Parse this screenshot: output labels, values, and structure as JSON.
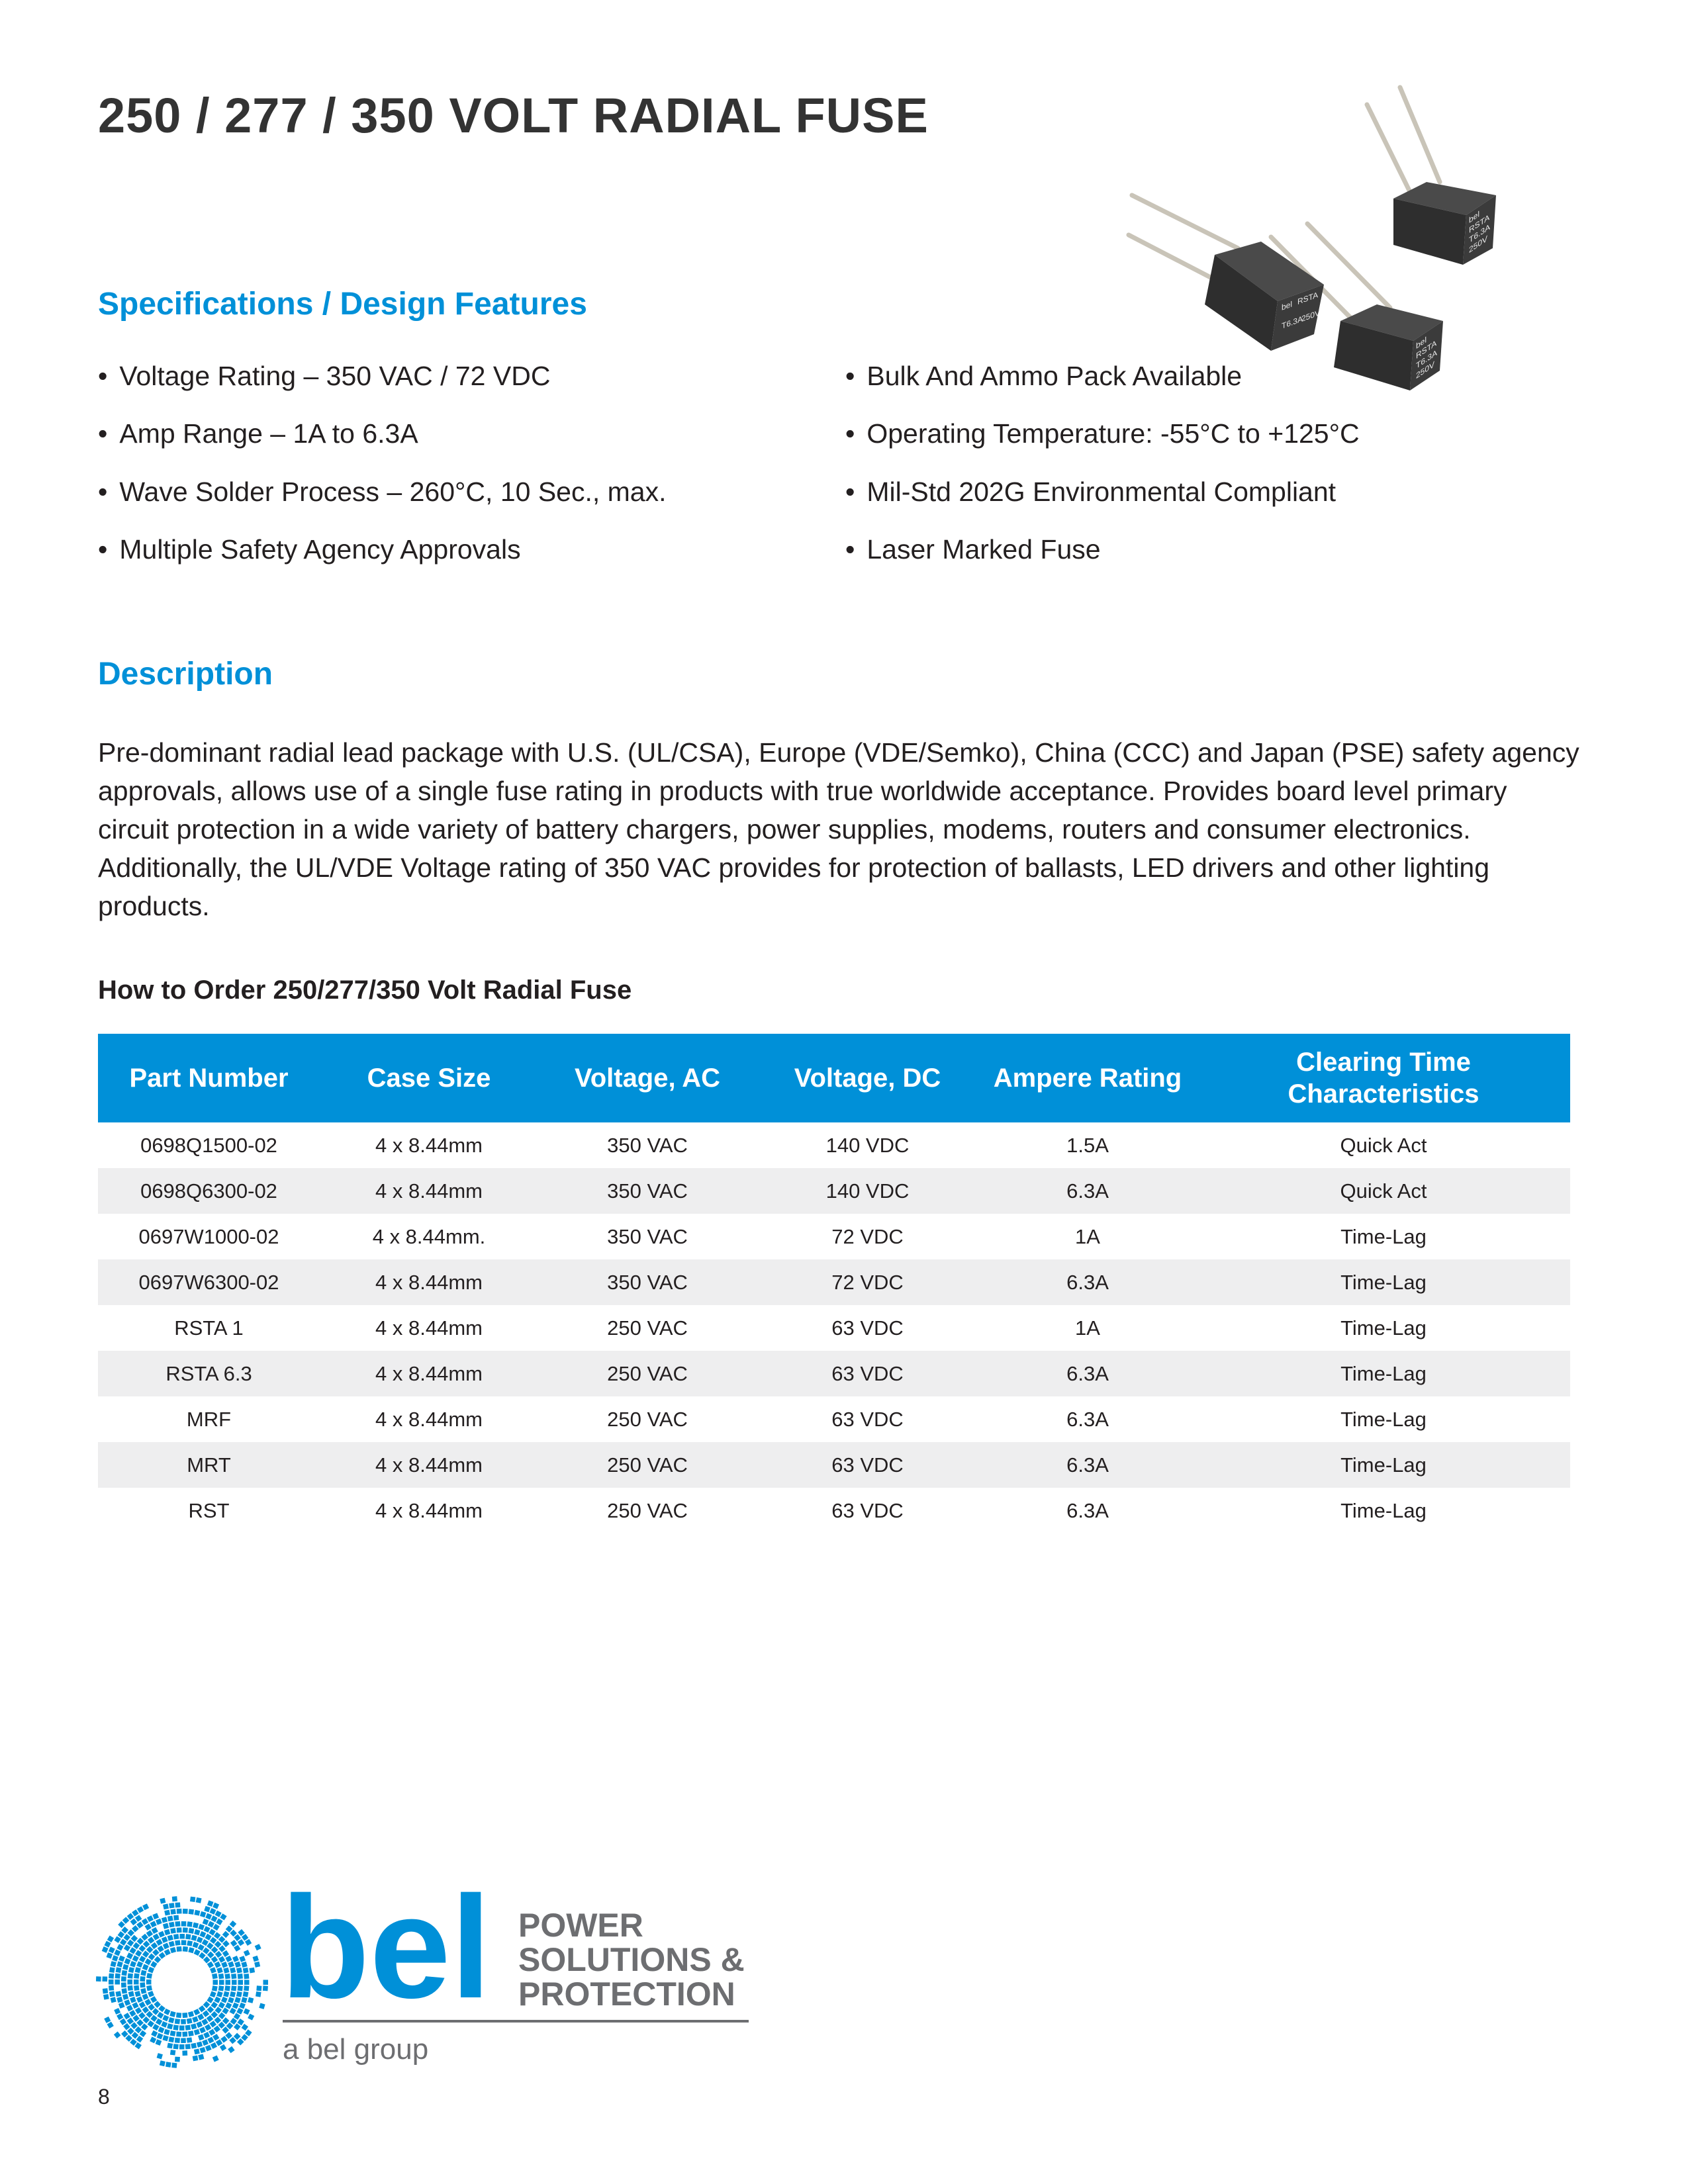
{
  "title": "250 / 277 / 350 VOLT RADIAL FUSE",
  "specs": {
    "heading": "Specifications / Design Features",
    "left": [
      "Voltage Rating – 350 VAC / 72 VDC",
      "Amp Range – 1A to 6.3A",
      "Wave Solder Process – 260°C, 10 Sec., max.",
      "Multiple Safety Agency Approvals"
    ],
    "right": [
      "Bulk And Ammo Pack Available",
      "Operating Temperature: -55°C to +125°C",
      "Mil-Std 202G Environmental Compliant",
      "Laser Marked Fuse"
    ]
  },
  "description": {
    "heading": "Description",
    "text": "Pre-dominant radial lead package with U.S. (UL/CSA), Europe (VDE/Semko), China (CCC) and Japan (PSE) safety agency approvals, allows use of a single fuse rating in products with true worldwide acceptance. Provides board level primary circuit protection in a wide variety of battery chargers, power supplies, modems, routers and consumer electronics. Additionally, the UL/VDE Voltage rating of 350 VAC provides for protection of ballasts, LED drivers and other lighting products."
  },
  "order": {
    "title": "How to Order 250/277/350 Volt Radial Fuse",
    "headers": [
      "Part Number",
      "Case Size",
      "Voltage, AC",
      "Voltage, DC",
      "Ampere Rating",
      "Clearing Time Characteristics"
    ],
    "rows": [
      [
        "0698Q1500-02",
        "4 x 8.44mm",
        "350 VAC",
        "140 VDC",
        "1.5A",
        "Quick Act"
      ],
      [
        "0698Q6300-02",
        "4 x 8.44mm",
        "350 VAC",
        "140 VDC",
        "6.3A",
        "Quick Act"
      ],
      [
        "0697W1000-02",
        "4 x 8.44mm.",
        "350 VAC",
        "72 VDC",
        "1A",
        "Time-Lag"
      ],
      [
        "0697W6300-02",
        "4 x 8.44mm",
        "350 VAC",
        "72 VDC",
        "6.3A",
        "Time-Lag"
      ],
      [
        "RSTA 1",
        "4 x 8.44mm",
        "250 VAC",
        "63 VDC",
        "1A",
        "Time-Lag"
      ],
      [
        "RSTA 6.3",
        "4 x 8.44mm",
        "250 VAC",
        "63 VDC",
        "6.3A",
        "Time-Lag"
      ],
      [
        "MRF",
        "4 x 8.44mm",
        "250 VAC",
        "63 VDC",
        "6.3A",
        "Time-Lag"
      ],
      [
        "MRT",
        "4 x 8.44mm",
        "250 VAC",
        "63 VDC",
        "6.3A",
        "Time-Lag"
      ],
      [
        "RST",
        "4 x 8.44mm",
        "250 VAC",
        "63 VDC",
        "6.3A",
        "Time-Lag"
      ]
    ]
  },
  "logo": {
    "mark": "bel",
    "tagline": [
      "POWER",
      "SOLUTIONS &",
      "PROTECTION"
    ],
    "group": "a bel group"
  },
  "product_image_marking": [
    "bel",
    "RSTA",
    "T6.3A",
    "250V"
  ],
  "page_number": "8",
  "colors": {
    "accent": "#0090d8",
    "gray": "#6d6e71",
    "row_alt": "#eeeeef"
  }
}
